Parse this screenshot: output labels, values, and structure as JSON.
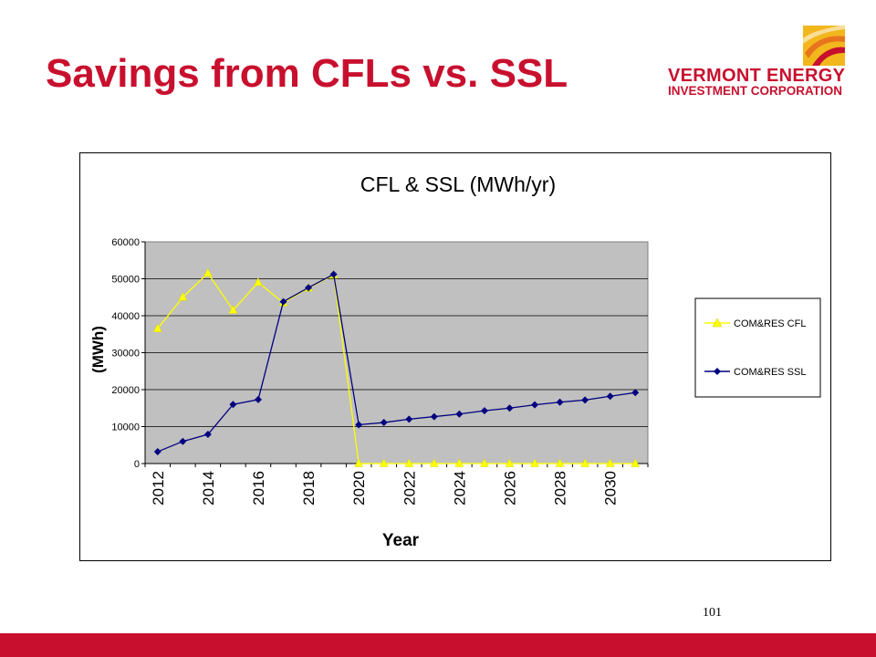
{
  "slide": {
    "title": "Savings from CFLs vs. SSL",
    "page_number": "101"
  },
  "logo": {
    "line1": "VERMONT ENERGY",
    "line2": "INVESTMENT CORPORATION"
  },
  "colors": {
    "brand": "#c8102e",
    "plot_bg": "#c0c0c0",
    "cfl_series": "#ffff00",
    "ssl_series": "#000080"
  },
  "chart_data": {
    "type": "line",
    "title": "CFL & SSL (MWh/yr)",
    "xlabel": "Year",
    "ylabel": "(MWh)",
    "ylim": [
      0,
      60000
    ],
    "y_ticks": [
      "0",
      "10000",
      "20000",
      "30000",
      "40000",
      "50000",
      "60000"
    ],
    "x": [
      2012,
      2013,
      2014,
      2015,
      2016,
      2017,
      2018,
      2019,
      2020,
      2021,
      2022,
      2023,
      2024,
      2025,
      2026,
      2027,
      2028,
      2029,
      2030,
      2031
    ],
    "x_tick_labels": [
      "2012",
      "2014",
      "2016",
      "2018",
      "2020",
      "2022",
      "2024",
      "2026",
      "2028",
      "2030"
    ],
    "grid": true,
    "legend_position": "right",
    "series": [
      {
        "name": "COM&RES CFL",
        "color": "#ffff00",
        "marker": "triangle",
        "values": [
          36500,
          45000,
          51500,
          41500,
          49000,
          43500,
          47500,
          51000,
          0,
          0,
          0,
          0,
          0,
          0,
          0,
          0,
          0,
          0,
          0,
          0
        ]
      },
      {
        "name": "COM&RES SSL",
        "color": "#000080",
        "marker": "diamond",
        "values": [
          3200,
          6000,
          7900,
          16000,
          17300,
          43800,
          47600,
          51200,
          10500,
          11100,
          12000,
          12700,
          13400,
          14300,
          15000,
          15900,
          16600,
          17200,
          18200,
          19200
        ]
      }
    ]
  }
}
